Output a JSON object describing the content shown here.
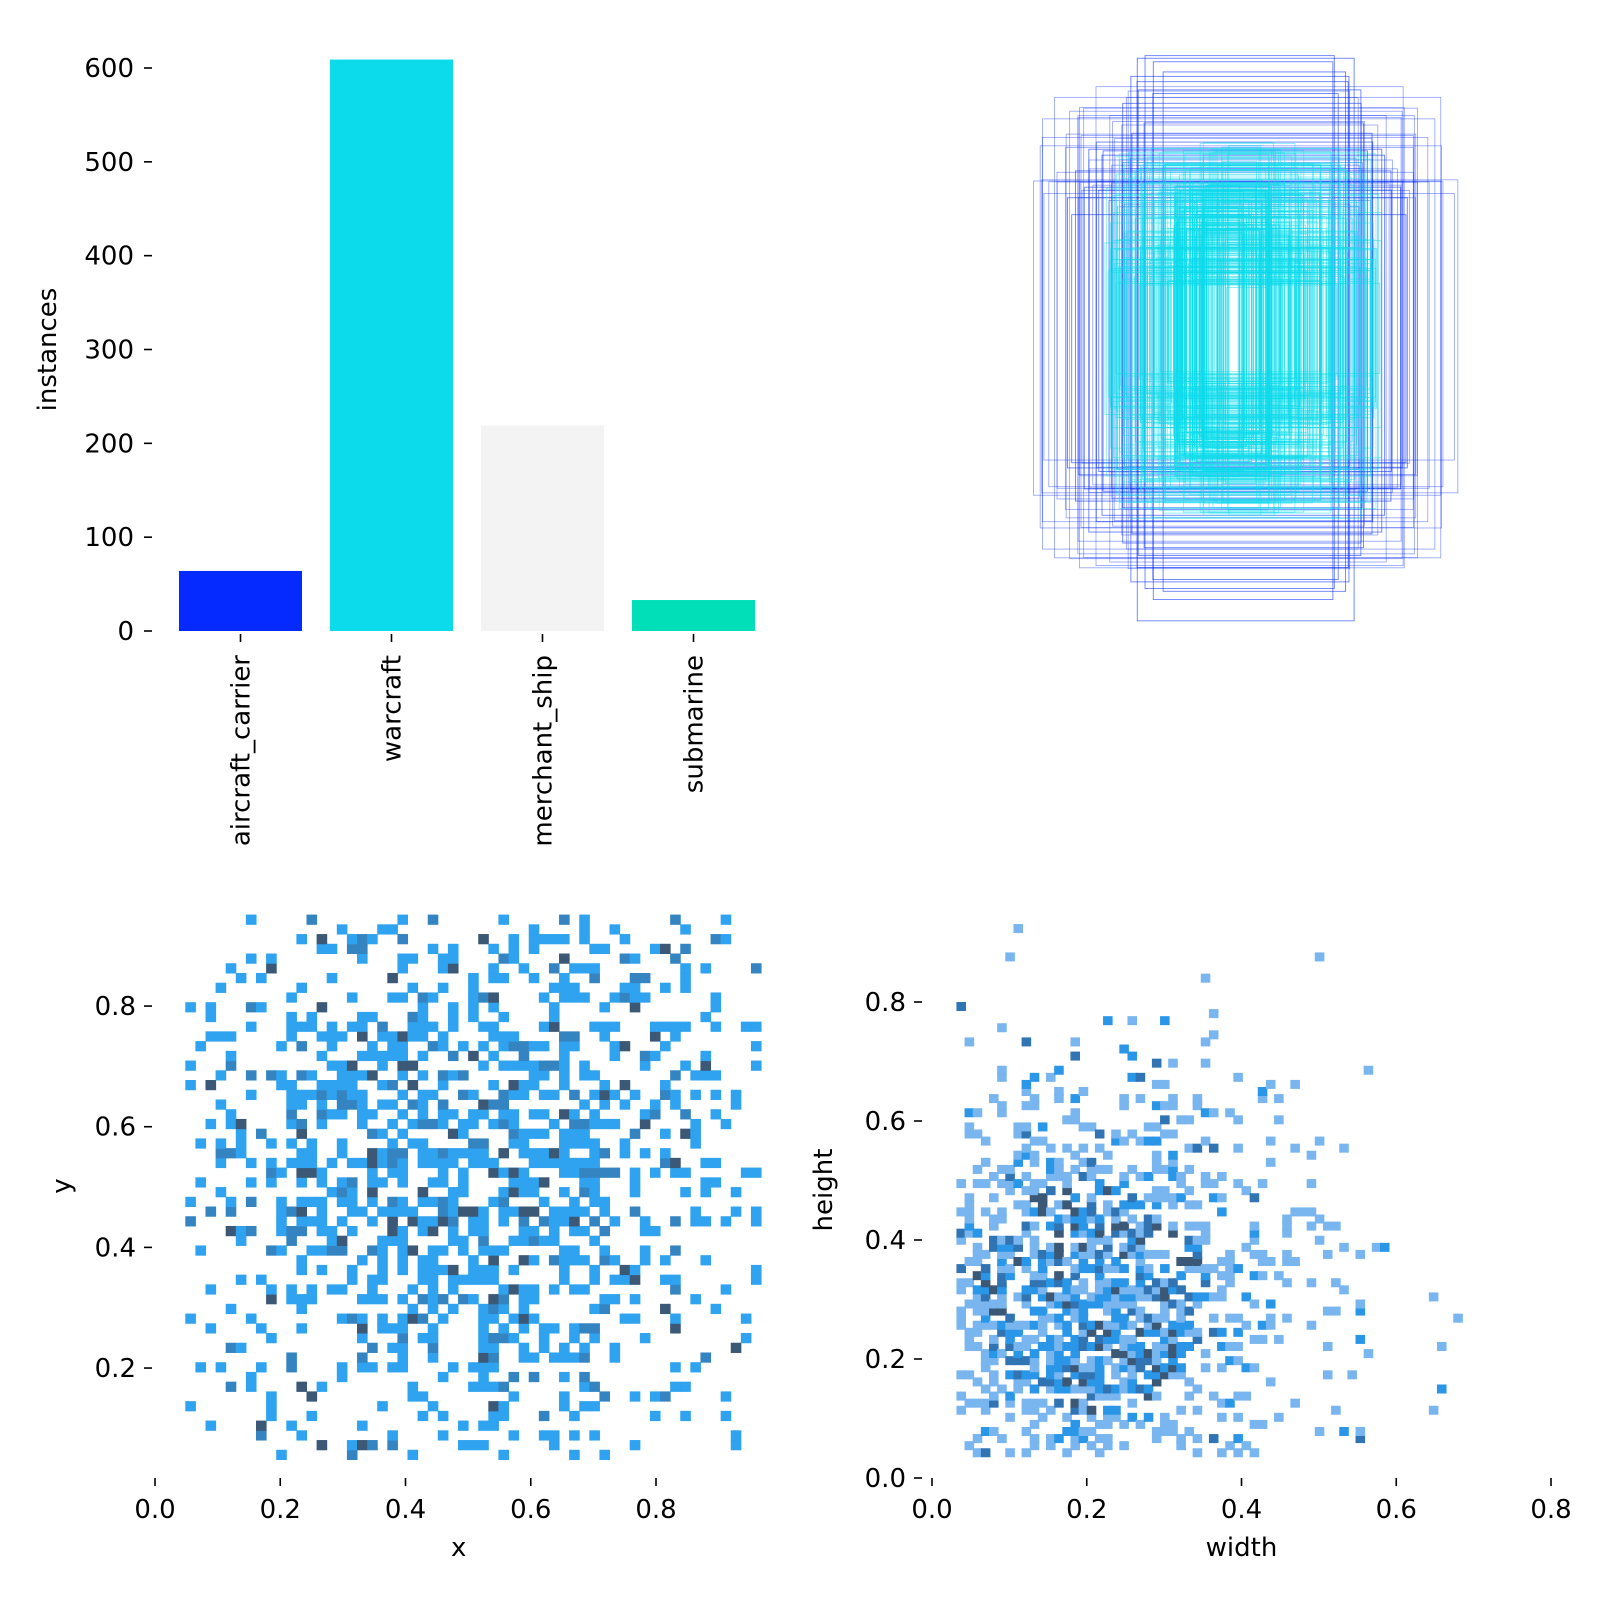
{
  "chart_data": [
    {
      "type": "bar",
      "categories": [
        "aircraft_carrier",
        "warcraft",
        "merchant_ship",
        "submarine"
      ],
      "values": [
        64,
        609,
        219,
        33
      ],
      "colors": [
        "#042aff",
        "#0bdbeb",
        "#f3f3f3",
        "#00dfb7"
      ],
      "ylabel": "instances",
      "ylim": [
        0,
        609
      ],
      "yticks": [
        "0",
        "100",
        "200",
        "300",
        "400",
        "500",
        "600"
      ],
      "grid": false
    },
    {
      "type": "diagram",
      "description_of_marks": "overlaid centered bounding boxes",
      "box_colors": [
        "#042aff",
        "#0bdbeb"
      ],
      "boxes_wh": [
        [
          0.55,
          1.0
        ],
        [
          0.5,
          0.95
        ],
        [
          0.48,
          0.92
        ],
        [
          0.45,
          0.88
        ],
        [
          0.72,
          0.55
        ],
        [
          0.78,
          0.6
        ],
        [
          0.66,
          0.7
        ],
        [
          0.62,
          0.8
        ],
        [
          0.58,
          0.84
        ],
        [
          0.8,
          0.48
        ],
        [
          0.7,
          0.66
        ],
        [
          0.6,
          0.74
        ],
        [
          0.52,
          0.86
        ],
        [
          0.74,
          0.5
        ],
        [
          0.68,
          0.62
        ],
        [
          0.64,
          0.68
        ],
        [
          0.5,
          0.9
        ],
        [
          0.42,
          0.96
        ],
        [
          0.76,
          0.44
        ],
        [
          0.56,
          0.78
        ]
      ]
    },
    {
      "type": "heatmap",
      "xlabel": "x",
      "ylabel": "y",
      "xlim": [
        0.0,
        0.97
      ],
      "ylim": [
        0.0,
        0.95
      ],
      "xticks": [
        "0.0",
        "0.2",
        "0.4",
        "0.6",
        "0.8"
      ],
      "yticks": [
        "0.2",
        "0.4",
        "0.6",
        "0.8"
      ],
      "colors": [
        "#2fa3ef",
        "#3584c2",
        "#3b5876"
      ]
    },
    {
      "type": "heatmap",
      "xlabel": "width",
      "ylabel": "height",
      "xlim": [
        0.0,
        0.8
      ],
      "ylim": [
        0.0,
        0.95
      ],
      "xticks": [
        "0.0",
        "0.2",
        "0.4",
        "0.6",
        "0.8"
      ],
      "yticks": [
        "0.0",
        "0.2",
        "0.4",
        "0.6",
        "0.8"
      ],
      "colors": [
        "#79b5ee",
        "#2a96e8",
        "#3174b4",
        "#3b5876"
      ]
    }
  ]
}
